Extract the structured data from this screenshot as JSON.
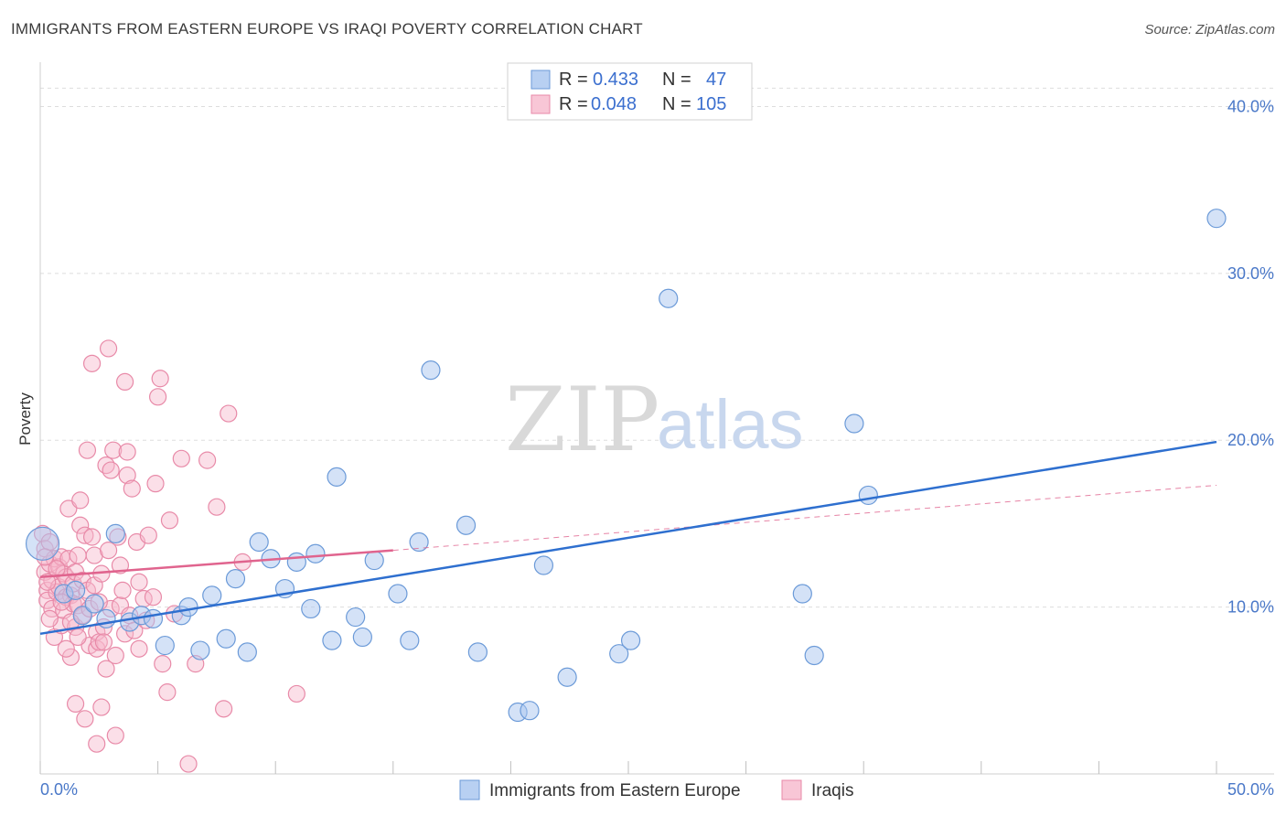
{
  "header": {
    "title": "IMMIGRANTS FROM EASTERN EUROPE VS IRAQI POVERTY CORRELATION CHART",
    "source": "Source: ZipAtlas.com"
  },
  "watermark": {
    "zip": "ZIP",
    "atlas": "atlas"
  },
  "legend": {
    "rows": [
      {
        "r_label": "R =",
        "r_value": "0.433",
        "n_label": "N =",
        "n_value": "47"
      },
      {
        "r_label": "R =",
        "r_value": "0.048",
        "n_label": "N =",
        "n_value": "105"
      }
    ]
  },
  "colors": {
    "blue_fill": "#a9c6ef",
    "blue_stroke": "#6b9ad8",
    "blue_line": "#2e6fcf",
    "pink_fill": "#f6b8cb",
    "pink_stroke": "#e88aa8",
    "pink_line": "#e0648e",
    "grid": "#dddddd",
    "axis_tick_text": "#4a78c8"
  },
  "chart_data": {
    "type": "scatter",
    "title": "IMMIGRANTS FROM EASTERN EUROPE VS IRAQI POVERTY CORRELATION CHART",
    "xlabel": "",
    "ylabel": "Poverty",
    "xlim": [
      0,
      50
    ],
    "ylim": [
      0,
      42
    ],
    "x_tick_labels": [
      "0.0%",
      "50.0%"
    ],
    "y_ticks": [
      10,
      20,
      30,
      40
    ],
    "y_tick_labels": [
      "10.0%",
      "20.0%",
      "30.0%",
      "40.0%"
    ],
    "series": [
      {
        "name": "Immigrants from Eastern Europe",
        "R": 0.433,
        "N": 47,
        "trend": {
          "x": [
            0,
            50
          ],
          "y": [
            8.4,
            19.9
          ],
          "style": "solid"
        },
        "points": [
          [
            0.1,
            13.8,
            18
          ],
          [
            1.0,
            10.8,
            10
          ],
          [
            1.5,
            11.0,
            10
          ],
          [
            1.8,
            9.5,
            10
          ],
          [
            2.3,
            10.2,
            10
          ],
          [
            2.8,
            9.3,
            10
          ],
          [
            3.2,
            14.4,
            10
          ],
          [
            3.8,
            9.1,
            10
          ],
          [
            4.3,
            9.5,
            10
          ],
          [
            4.8,
            9.3,
            10
          ],
          [
            5.3,
            7.7,
            10
          ],
          [
            6.0,
            9.5,
            10
          ],
          [
            6.3,
            10.0,
            10
          ],
          [
            6.8,
            7.4,
            10
          ],
          [
            7.3,
            10.7,
            10
          ],
          [
            7.9,
            8.1,
            10
          ],
          [
            8.3,
            11.7,
            10
          ],
          [
            8.8,
            7.3,
            10
          ],
          [
            9.3,
            13.9,
            10
          ],
          [
            9.8,
            12.9,
            10
          ],
          [
            10.4,
            11.1,
            10
          ],
          [
            10.9,
            12.7,
            10
          ],
          [
            11.5,
            9.9,
            10
          ],
          [
            11.7,
            13.2,
            10
          ],
          [
            12.4,
            8.0,
            10
          ],
          [
            12.6,
            17.8,
            10
          ],
          [
            13.4,
            9.4,
            10
          ],
          [
            13.7,
            8.2,
            10
          ],
          [
            14.2,
            12.8,
            10
          ],
          [
            15.2,
            10.8,
            10
          ],
          [
            15.7,
            8.0,
            10
          ],
          [
            16.1,
            13.9,
            10
          ],
          [
            16.6,
            24.2,
            10
          ],
          [
            18.1,
            14.9,
            10
          ],
          [
            18.6,
            7.3,
            10
          ],
          [
            20.3,
            3.7,
            10
          ],
          [
            20.8,
            3.8,
            10
          ],
          [
            21.4,
            12.5,
            10
          ],
          [
            22.4,
            5.8,
            10
          ],
          [
            24.6,
            7.2,
            10
          ],
          [
            25.1,
            8.0,
            10
          ],
          [
            26.7,
            28.5,
            10
          ],
          [
            32.4,
            10.8,
            10
          ],
          [
            32.9,
            7.1,
            10
          ],
          [
            34.6,
            21.0,
            10
          ],
          [
            35.2,
            16.7,
            10
          ],
          [
            50.0,
            33.3,
            10
          ]
        ]
      },
      {
        "name": "Iraqis",
        "R": 0.048,
        "N": 105,
        "trend": {
          "x": [
            0,
            15
          ],
          "y": [
            11.8,
            13.4
          ],
          "style": "solid"
        },
        "trend_extension": {
          "x": [
            15,
            50
          ],
          "y": [
            13.4,
            17.3
          ],
          "style": "dashed"
        },
        "points": [
          [
            0.1,
            14.4
          ],
          [
            0.2,
            13.5
          ],
          [
            0.2,
            12.1
          ],
          [
            0.3,
            11.0
          ],
          [
            0.3,
            10.4
          ],
          [
            0.4,
            13.9
          ],
          [
            0.4,
            12.6
          ],
          [
            0.5,
            11.6
          ],
          [
            0.5,
            9.9
          ],
          [
            0.6,
            8.2
          ],
          [
            0.6,
            12.9
          ],
          [
            0.7,
            10.9
          ],
          [
            0.8,
            12.4
          ],
          [
            0.8,
            11.2
          ],
          [
            0.9,
            8.9
          ],
          [
            0.9,
            13.0
          ],
          [
            1.0,
            12.0
          ],
          [
            1.0,
            9.8
          ],
          [
            1.1,
            11.8
          ],
          [
            1.1,
            10.6
          ],
          [
            1.2,
            12.9
          ],
          [
            1.2,
            15.9
          ],
          [
            1.3,
            7.0
          ],
          [
            1.3,
            10.7
          ],
          [
            1.4,
            10.2
          ],
          [
            1.4,
            11.4
          ],
          [
            1.5,
            8.8
          ],
          [
            1.5,
            12.1
          ],
          [
            1.5,
            4.2
          ],
          [
            1.6,
            13.1
          ],
          [
            1.6,
            10.1
          ],
          [
            1.7,
            14.9
          ],
          [
            1.7,
            16.4
          ],
          [
            1.8,
            11.6
          ],
          [
            1.8,
            9.5
          ],
          [
            1.9,
            14.3
          ],
          [
            1.9,
            3.3
          ],
          [
            2.0,
            19.4
          ],
          [
            2.0,
            11.0
          ],
          [
            2.1,
            7.7
          ],
          [
            2.1,
            9.9
          ],
          [
            2.2,
            14.2
          ],
          [
            2.2,
            24.6
          ],
          [
            2.3,
            13.1
          ],
          [
            2.3,
            11.3
          ],
          [
            2.4,
            7.5
          ],
          [
            2.4,
            8.5
          ],
          [
            2.4,
            1.8
          ],
          [
            2.5,
            7.9
          ],
          [
            2.6,
            12.0
          ],
          [
            2.6,
            4.0
          ],
          [
            2.7,
            8.8
          ],
          [
            2.7,
            7.9
          ],
          [
            2.8,
            18.5
          ],
          [
            2.8,
            6.3
          ],
          [
            2.9,
            25.5
          ],
          [
            3.0,
            18.2
          ],
          [
            3.0,
            9.9
          ],
          [
            3.1,
            19.4
          ],
          [
            3.2,
            2.3
          ],
          [
            3.2,
            7.1
          ],
          [
            3.3,
            14.2
          ],
          [
            3.4,
            10.1
          ],
          [
            3.5,
            11.0
          ],
          [
            3.6,
            8.4
          ],
          [
            3.6,
            23.5
          ],
          [
            3.7,
            19.3
          ],
          [
            3.7,
            17.9
          ],
          [
            3.8,
            9.5
          ],
          [
            3.9,
            17.1
          ],
          [
            4.0,
            8.6
          ],
          [
            4.1,
            13.9
          ],
          [
            4.2,
            7.5
          ],
          [
            4.4,
            10.5
          ],
          [
            4.5,
            9.2
          ],
          [
            4.6,
            14.3
          ],
          [
            4.8,
            10.6
          ],
          [
            4.9,
            17.4
          ],
          [
            5.0,
            22.6
          ],
          [
            5.1,
            23.7
          ],
          [
            5.2,
            6.6
          ],
          [
            5.4,
            4.9
          ],
          [
            5.5,
            15.2
          ],
          [
            6.0,
            18.9
          ],
          [
            6.3,
            0.6
          ],
          [
            6.6,
            6.6
          ],
          [
            7.1,
            18.8
          ],
          [
            7.5,
            16.0
          ],
          [
            7.8,
            3.9
          ],
          [
            8.0,
            21.6
          ],
          [
            8.6,
            12.7
          ],
          [
            10.9,
            4.8
          ],
          [
            0.3,
            11.5
          ],
          [
            0.4,
            9.3
          ],
          [
            0.7,
            12.3
          ],
          [
            1.3,
            9.1
          ],
          [
            2.5,
            10.3
          ],
          [
            3.4,
            12.5
          ],
          [
            4.2,
            11.5
          ],
          [
            0.9,
            10.3
          ],
          [
            1.6,
            8.2
          ],
          [
            2.9,
            13.4
          ],
          [
            5.7,
            9.6
          ],
          [
            0.2,
            13.0
          ],
          [
            1.1,
            7.5
          ]
        ]
      }
    ],
    "legend_position": "top-center",
    "grid": true
  },
  "bottom_legend": {
    "items": [
      {
        "label": "Immigrants from Eastern Europe"
      },
      {
        "label": "Iraqis"
      }
    ]
  }
}
